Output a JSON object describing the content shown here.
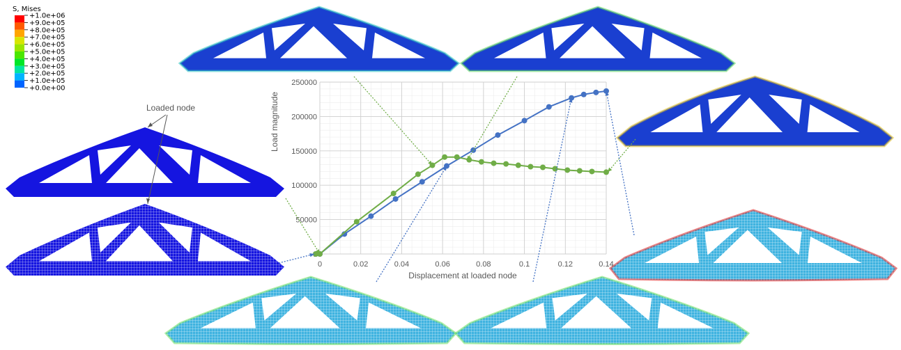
{
  "legend": {
    "title": "S, Mises",
    "levels": [
      {
        "label": "+1.0e+06",
        "color": "#ff0000"
      },
      {
        "label": "+9.0e+05",
        "color": "#ff5a00"
      },
      {
        "label": "+8.0e+05",
        "color": "#ffa500"
      },
      {
        "label": "+7.0e+05",
        "color": "#d7e600"
      },
      {
        "label": "+6.0e+05",
        "color": "#9be600"
      },
      {
        "label": "+5.0e+05",
        "color": "#4be600"
      },
      {
        "label": "+4.0e+05",
        "color": "#00e628"
      },
      {
        "label": "+3.0e+05",
        "color": "#00e6a0"
      },
      {
        "label": "+2.0e+05",
        "color": "#00b4ff"
      },
      {
        "label": "+1.0e+05",
        "color": "#0064ff"
      },
      {
        "label": "+0.0e+00",
        "color": "#0000ff"
      }
    ]
  },
  "annotation": "Loaded node",
  "colors": {
    "series_a": "#4472c4",
    "series_b": "#70ad47",
    "mesh_low": "#1a2fc8",
    "mesh_mid": "#3fb3e0",
    "mesh_high": "#e02020"
  },
  "chart_data": {
    "type": "line",
    "xlabel": "Displacement at loaded node",
    "ylabel": "Load magnitude",
    "xlim": [
      0,
      0.14
    ],
    "ylim": [
      0,
      250000
    ],
    "xticks": [
      "0",
      "0.02",
      "0.04",
      "0.06",
      "0.08",
      "0.1",
      "0.12",
      "0.14"
    ],
    "yticks": [
      "0",
      "50000",
      "100000",
      "150000",
      "200000",
      "250000"
    ],
    "grid": true,
    "series": [
      {
        "color": "#4472c4",
        "points": [
          [
            -0.002,
            0
          ],
          [
            0,
            0
          ],
          [
            0.012,
            29000
          ],
          [
            0.025,
            55000
          ],
          [
            0.037,
            80000
          ],
          [
            0.05,
            105000
          ],
          [
            0.062,
            128000
          ],
          [
            0.075,
            151000
          ],
          [
            0.087,
            173000
          ],
          [
            0.1,
            194000
          ],
          [
            0.112,
            214000
          ],
          [
            0.123,
            227000
          ],
          [
            0.129,
            232000
          ],
          [
            0.135,
            235000
          ],
          [
            0.14,
            237000
          ]
        ]
      },
      {
        "color": "#70ad47",
        "points": [
          [
            -0.002,
            0
          ],
          [
            0,
            0
          ],
          [
            0.018,
            47000
          ],
          [
            0.036,
            88000
          ],
          [
            0.048,
            116000
          ],
          [
            0.055,
            129000
          ],
          [
            0.061,
            141000
          ],
          [
            0.067,
            141000
          ],
          [
            0.073,
            137000
          ],
          [
            0.079,
            134000
          ],
          [
            0.085,
            132000
          ],
          [
            0.091,
            131000
          ],
          [
            0.097,
            129000
          ],
          [
            0.103,
            127000
          ],
          [
            0.109,
            126000
          ],
          [
            0.115,
            124000
          ],
          [
            0.121,
            122000
          ],
          [
            0.127,
            121000
          ],
          [
            0.133,
            120000
          ],
          [
            0.14,
            119000
          ]
        ]
      }
    ]
  }
}
